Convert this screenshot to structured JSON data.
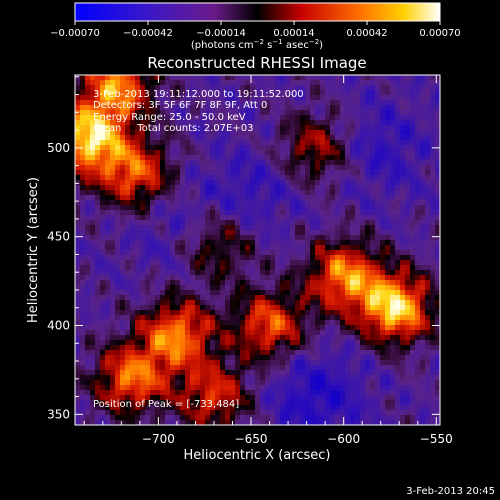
{
  "chart_data": {
    "type": "heatmap",
    "title": "Reconstructed RHESSI Image",
    "xlabel": "Heliocentric X (arcsec)",
    "ylabel": "Heliocentric Y (arcsec)",
    "xlim": [
      -745,
      -548
    ],
    "ylim": [
      344,
      541
    ],
    "xticks": [
      -700,
      -650,
      -600,
      -550
    ],
    "xtick_labels": [
      "−700",
      "−650",
      "−600",
      "−550"
    ],
    "yticks": [
      350,
      400,
      450,
      500
    ],
    "ytick_labels": [
      "350",
      "400",
      "450",
      "500"
    ],
    "colorbar": {
      "colormap": "hot (blue-purple-red-yellow-white)",
      "range": [
        -0.0007,
        0.0007
      ],
      "ticks": [
        -0.0007,
        -0.00042,
        -0.00014,
        0.00014,
        0.00042,
        0.0007
      ],
      "tick_labels": [
        "−0.00070",
        "−0.00042",
        "−0.00014",
        "0.00014",
        "0.00042",
        "0.00070"
      ],
      "unit_label": "(photons cm",
      "unit_exp1": "−2",
      "unit_mid": " s",
      "unit_exp2": "−1",
      "unit_mid2": " asec",
      "unit_exp3": "−2",
      "unit_end": ")"
    },
    "annotations": [
      "3-Feb-2013 19:11:12.000 to 19:11:52.000",
      "Detectors: 3F 5F 6F 7F 8F 9F, Att 0",
      "Energy Range: 25.0 - 50.0 keV",
      "Clean     Total counts: 2.07E+03"
    ],
    "peak_label": "Position of Peak = [-733,484]",
    "footer": "3-Feb-2013 20:45",
    "hot_regions": [
      {
        "x": -738,
        "y": 505,
        "strength": 1.0
      },
      {
        "x": -722,
        "y": 535,
        "strength": 0.8
      },
      {
        "x": -712,
        "y": 485,
        "strength": 0.7
      },
      {
        "x": -572,
        "y": 410,
        "strength": 1.0
      },
      {
        "x": -600,
        "y": 428,
        "strength": 0.8
      },
      {
        "x": -640,
        "y": 400,
        "strength": 0.7
      },
      {
        "x": -690,
        "y": 395,
        "strength": 0.8
      },
      {
        "x": -715,
        "y": 370,
        "strength": 0.75
      },
      {
        "x": -670,
        "y": 360,
        "strength": 0.6
      },
      {
        "x": -615,
        "y": 500,
        "strength": 0.5
      },
      {
        "x": -668,
        "y": 445,
        "strength": 0.45
      }
    ],
    "cold_regions": [
      {
        "x": -615,
        "y": 360,
        "strength": 1.0
      },
      {
        "x": -580,
        "y": 500,
        "strength": 0.7
      },
      {
        "x": -650,
        "y": 475,
        "strength": 0.6
      },
      {
        "x": -690,
        "y": 455,
        "strength": 0.5
      }
    ]
  }
}
